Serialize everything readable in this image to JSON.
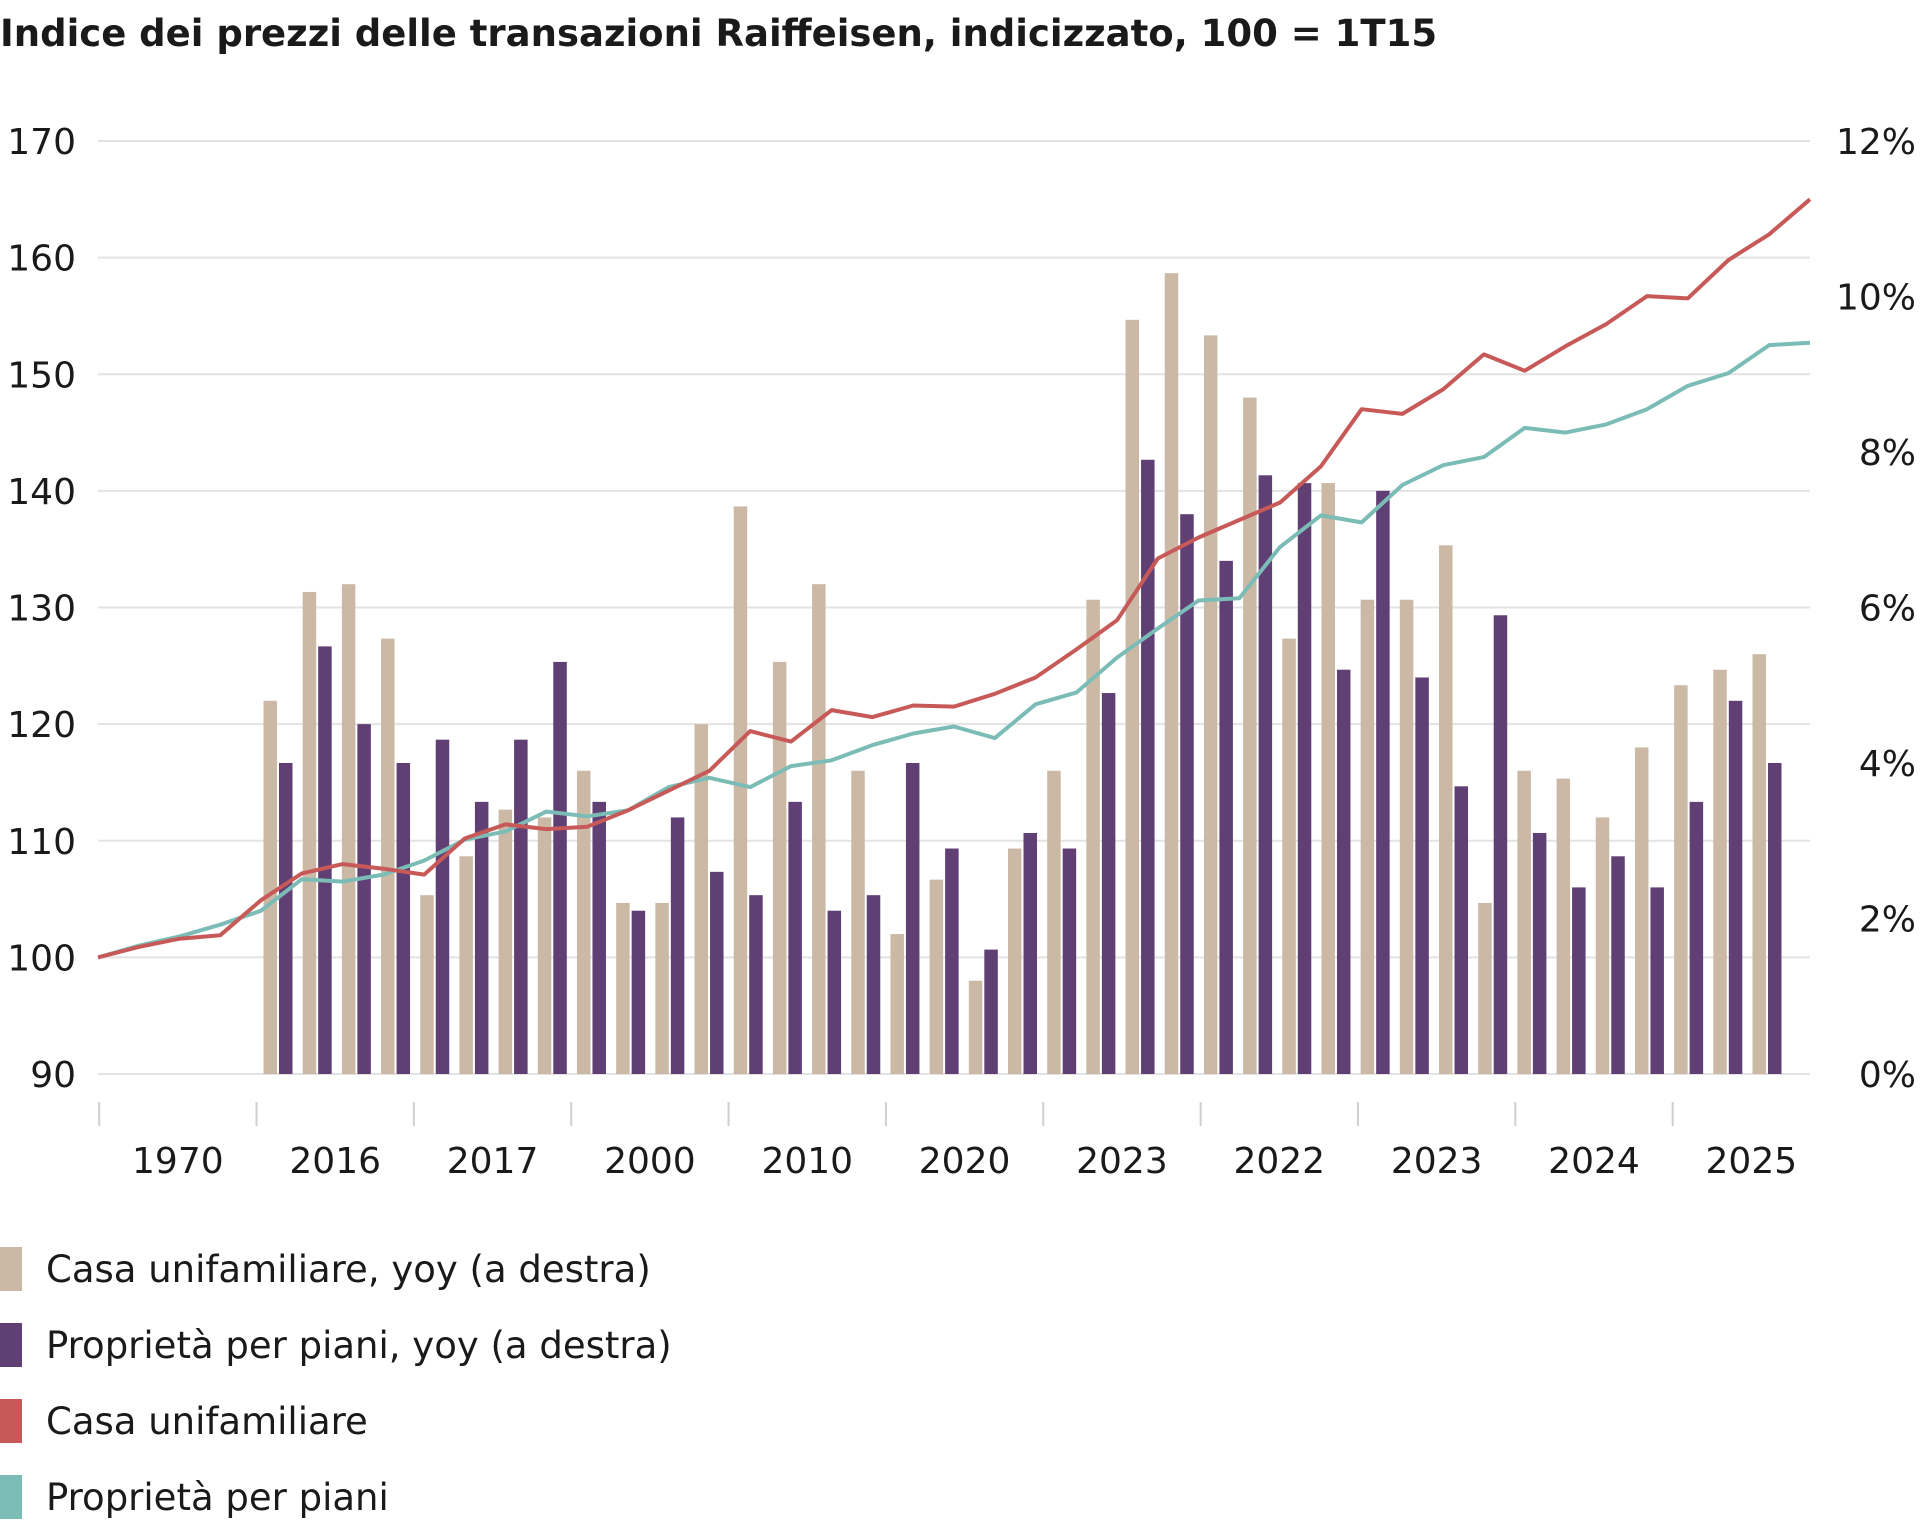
{
  "chart_data": {
    "type": "bar+line",
    "title": "Indice dei prezzi delle transazioni Raiffeisen, indicizzato, 100 = 1T15",
    "xlabel": "",
    "ylabel": "",
    "x_tick_labels": [
      "1970",
      "2016",
      "2017",
      "2000",
      "2010",
      "2020",
      "2023",
      "2022",
      "2023",
      "2024",
      "2025"
    ],
    "y_left": {
      "ylim": [
        90,
        170
      ],
      "ticks": [
        "170",
        "160",
        "150",
        "140",
        "130",
        "120",
        "110",
        "100",
        "90"
      ]
    },
    "y_right": {
      "ylim": [
        0,
        12
      ],
      "unit": "%",
      "ticks": [
        "12%",
        "10%",
        "8%",
        "6%",
        "4%",
        "2%",
        "0%"
      ]
    },
    "grid": true,
    "legend_position": "bottom",
    "colors": {
      "casa_yoy": "#cbb9a6",
      "ppp_yoy": "#5f3f74",
      "casa": "#c75a58",
      "ppp": "#7bbdb6"
    },
    "series": [
      {
        "name": "Casa unifamiliare, yoy (a destra)",
        "type": "bar",
        "axis": "right",
        "color_key": "casa_yoy",
        "values": [
          4.8,
          6.2,
          6.3,
          5.6,
          2.3,
          2.8,
          3.4,
          3.3,
          3.9,
          2.2,
          2.2,
          4.5,
          7.3,
          5.3,
          6.3,
          3.9,
          1.8,
          2.5,
          1.2,
          2.9,
          3.9,
          6.1,
          9.7,
          10.3,
          9.5,
          8.7,
          5.6,
          7.6,
          6.1,
          6.1,
          6.8,
          2.2,
          3.9,
          3.8,
          3.3,
          4.2,
          5.0,
          5.2,
          5.4
        ]
      },
      {
        "name": "Proprietà per piani, yoy (a destra)",
        "type": "bar",
        "axis": "right",
        "color_key": "ppp_yoy",
        "values": [
          4.0,
          5.5,
          4.5,
          4.0,
          4.3,
          3.5,
          4.3,
          5.3,
          3.5,
          2.1,
          3.3,
          2.6,
          2.3,
          3.5,
          2.1,
          2.3,
          4.0,
          2.9,
          1.6,
          3.1,
          2.9,
          4.9,
          7.9,
          7.2,
          6.6,
          7.7,
          7.6,
          5.2,
          7.5,
          5.1,
          3.7,
          5.9,
          3.1,
          2.4,
          2.8,
          2.4,
          3.5,
          4.8,
          4.0
        ]
      },
      {
        "name": "Casa unifamiliare",
        "type": "line",
        "axis": "left",
        "color_key": "casa",
        "values": [
          100,
          100.9,
          101.6,
          101.9,
          104.9,
          107.2,
          108,
          107.6,
          107.1,
          110.2,
          111.4,
          111,
          111.2,
          112.6,
          114.3,
          116,
          119.4,
          118.5,
          121.2,
          120.6,
          121.6,
          121.5,
          122.6,
          124,
          126.4,
          128.9,
          134.2,
          136,
          137.5,
          139,
          142.1,
          147,
          146.6,
          148.7,
          151.7,
          150.3,
          152.4,
          154.3,
          156.7,
          156.5,
          159.8,
          162,
          165
        ]
      },
      {
        "name": "Proprietà per piani",
        "type": "line",
        "axis": "left",
        "color_key": "ppp",
        "values": [
          100,
          101,
          101.8,
          102.8,
          104,
          106.7,
          106.5,
          107.1,
          108.3,
          110.1,
          110.8,
          112.5,
          112.1,
          112.6,
          114.6,
          115.4,
          114.6,
          116.4,
          116.9,
          118.2,
          119.2,
          119.8,
          118.8,
          121.7,
          122.7,
          125.7,
          128.2,
          130.6,
          130.8,
          135.2,
          137.9,
          137.3,
          140.5,
          142.2,
          142.9,
          145.4,
          145,
          145.7,
          147,
          149,
          150.1,
          152.5,
          152.7
        ]
      }
    ]
  }
}
